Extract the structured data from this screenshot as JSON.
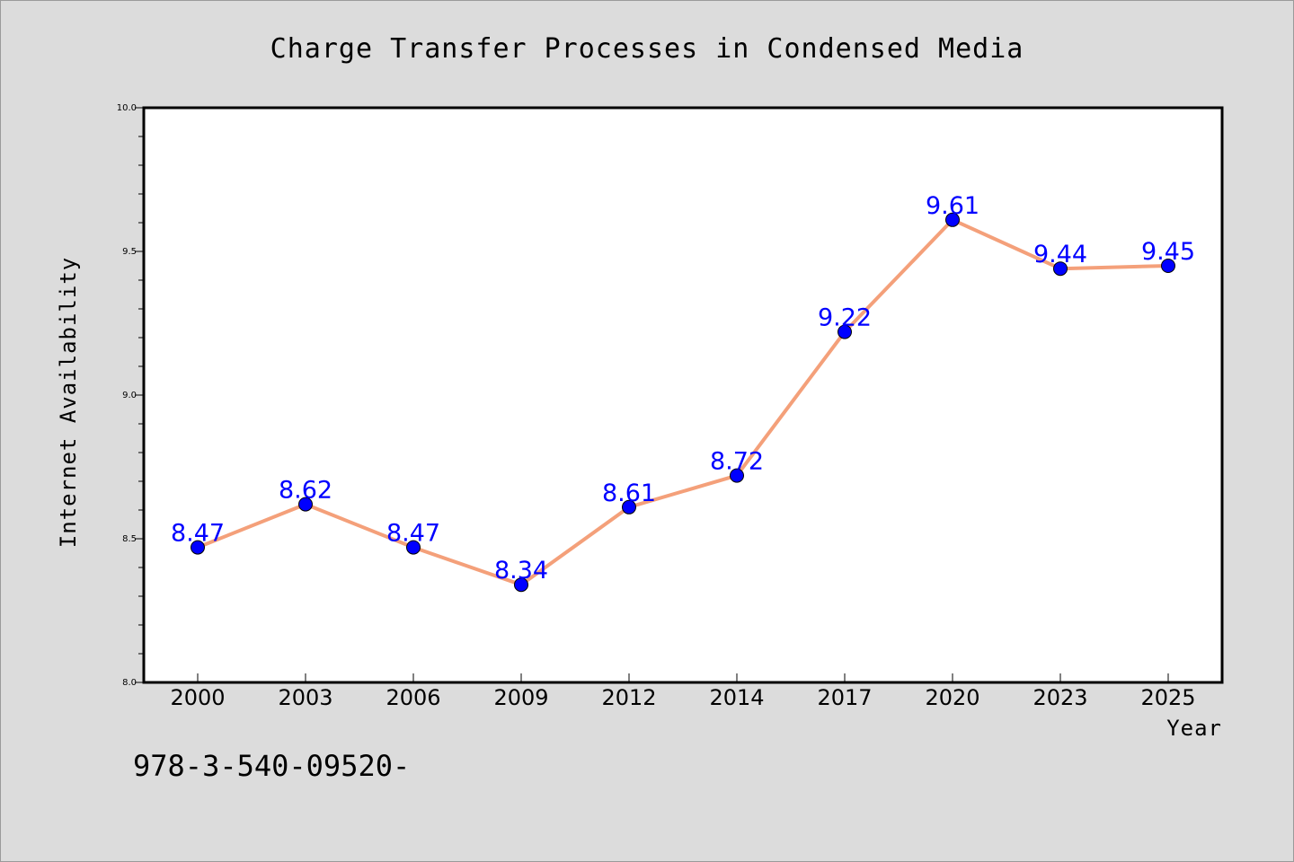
{
  "chart_data": {
    "type": "line",
    "title": "Charge Transfer Processes in Condensed Media",
    "xlabel": "Year",
    "ylabel": "Internet Availability",
    "categories": [
      "2000",
      "2003",
      "2006",
      "2009",
      "2012",
      "2014",
      "2017",
      "2020",
      "2023",
      "2025"
    ],
    "series": [
      {
        "values": [
          8.47,
          8.62,
          8.47,
          8.34,
          8.61,
          8.72,
          9.22,
          9.61,
          9.44,
          9.45
        ],
        "data_labels": [
          "8.47",
          "8.62",
          "8.47",
          "8.34",
          "8.61",
          "8.72",
          "9.22",
          "9.61",
          "9.44",
          "9.45"
        ],
        "line_color": "#f4a07a",
        "marker_color": "#0000ff",
        "label_color": "#0000ff"
      }
    ],
    "ylim": [
      8.0,
      10.0
    ],
    "yticks": [
      "8.0",
      "8.5",
      "9.0",
      "9.5",
      "10.0"
    ],
    "ytick_values": [
      8.0,
      8.5,
      9.0,
      9.5,
      10.0
    ],
    "y_minor_step": 0.1,
    "grid": false,
    "legend": "none"
  },
  "footer": {
    "text": "978-3-540-09520-"
  },
  "colors": {
    "background": "#dcdcdc",
    "plot_background": "#ffffff"
  }
}
